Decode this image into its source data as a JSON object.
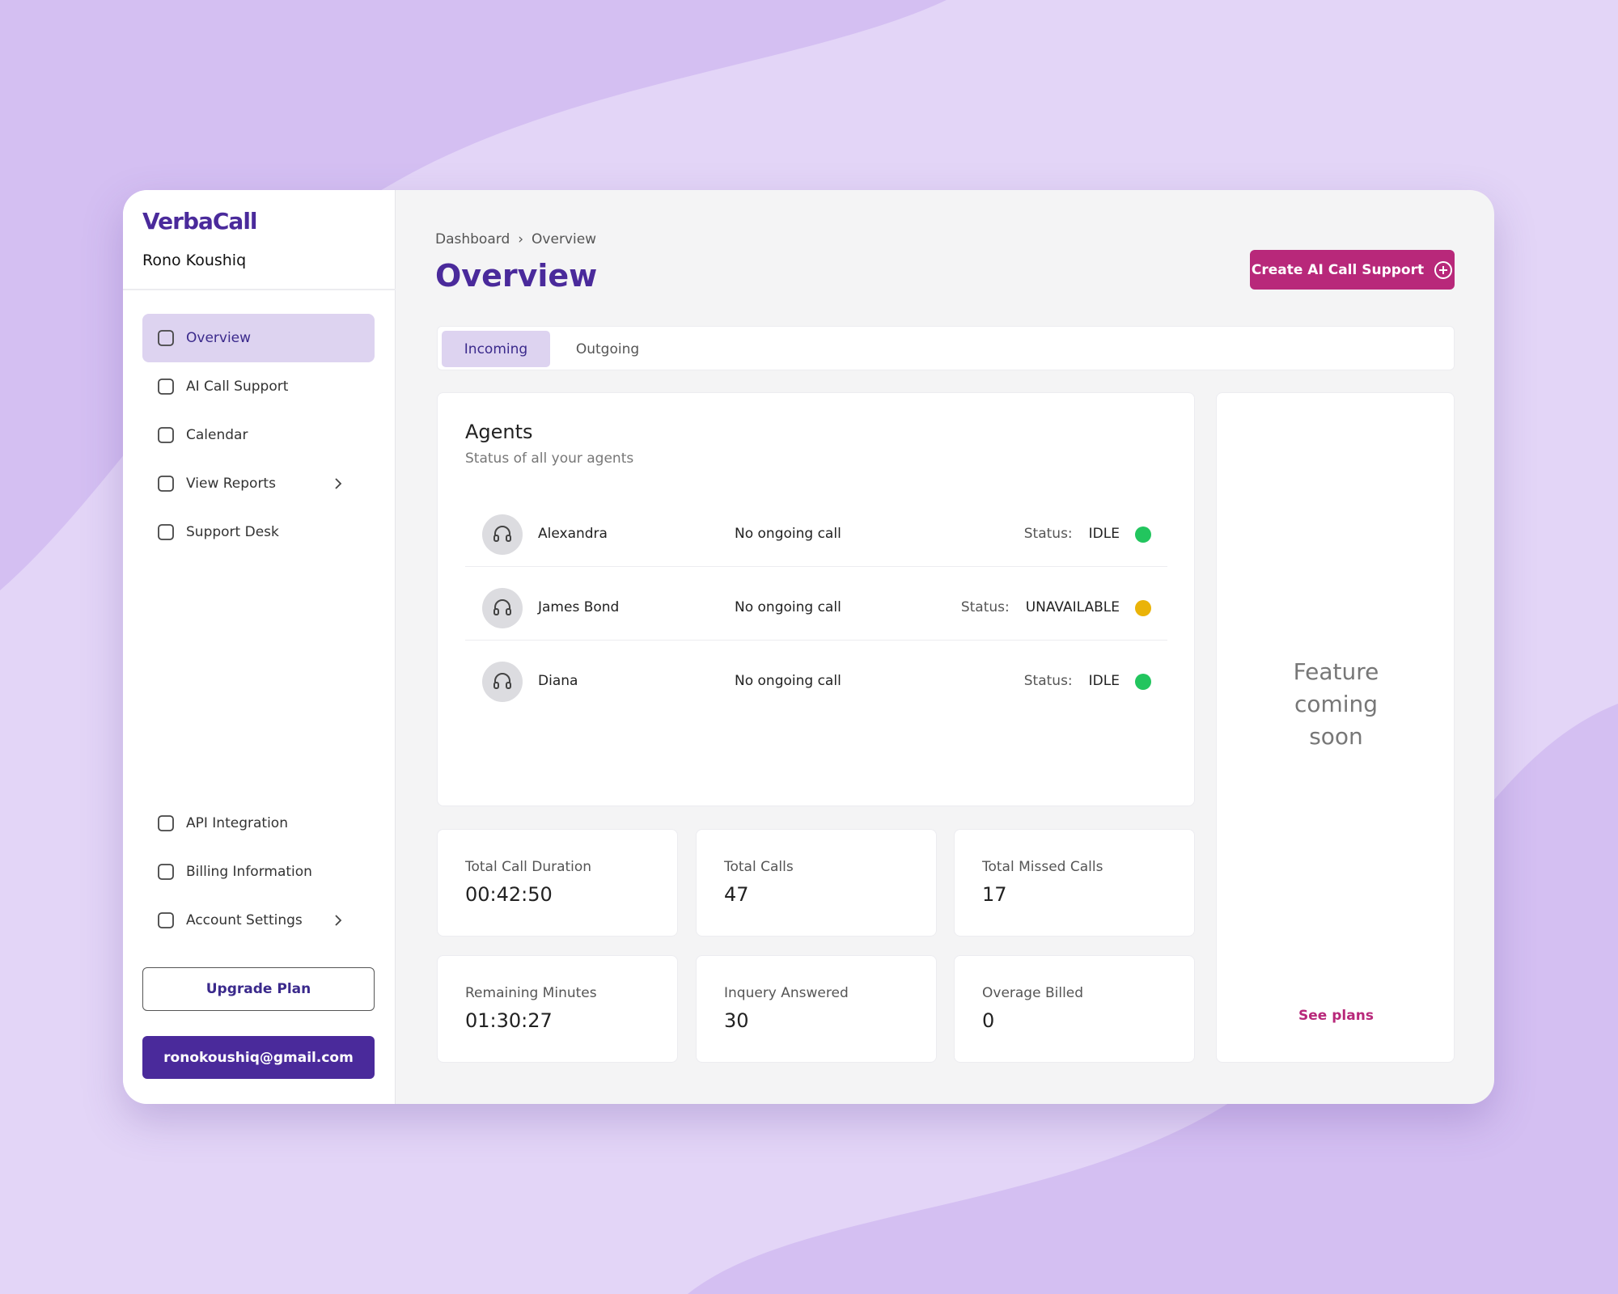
{
  "sidebar": {
    "brand": "VerbaCall",
    "user": "Rono Koushiq",
    "nav": [
      "Overview",
      "AI Call Support",
      "Calendar",
      "View Reports",
      "Support Desk"
    ],
    "bottom_nav": [
      "API Integration",
      "Billing Information",
      "Account Settings"
    ],
    "upgrade": "Upgrade Plan",
    "email": "ronokoushiq@gmail.com"
  },
  "breadcrumb": [
    "Dashboard",
    "Overview"
  ],
  "title": "Overview",
  "create_button": "Create AI Call Support",
  "tabs": [
    "Incoming",
    "Outgoing"
  ],
  "agents_card": {
    "title": "Agents",
    "subtitle": "Status of all your agents",
    "agents": [
      {
        "name": "Alexandra",
        "call": "No ongoing call",
        "status_label": "Status:",
        "status": "IDLE",
        "dot_color": "#22c55e"
      },
      {
        "name": "James Bond",
        "call": "No ongoing call",
        "status_label": "Status:",
        "status": "UNAVAILABLE",
        "dot_color": "#eab308"
      },
      {
        "name": "Diana",
        "call": "No ongoing call",
        "status_label": "Status:",
        "status": "IDLE",
        "dot_color": "#22c55e"
      }
    ]
  },
  "stats": [
    {
      "label": "Total Call Duration",
      "value": "00:42:50"
    },
    {
      "label": "Total Calls",
      "value": "47"
    },
    {
      "label": "Total Missed Calls",
      "value": "17"
    },
    {
      "label": "Remaining Minutes",
      "value": "01:30:27"
    },
    {
      "label": "Inquery Answered",
      "value": "30"
    },
    {
      "label": "Overage Billed",
      "value": "0"
    }
  ],
  "side_card": {
    "text": "Feature coming soon",
    "link": "See plans"
  }
}
